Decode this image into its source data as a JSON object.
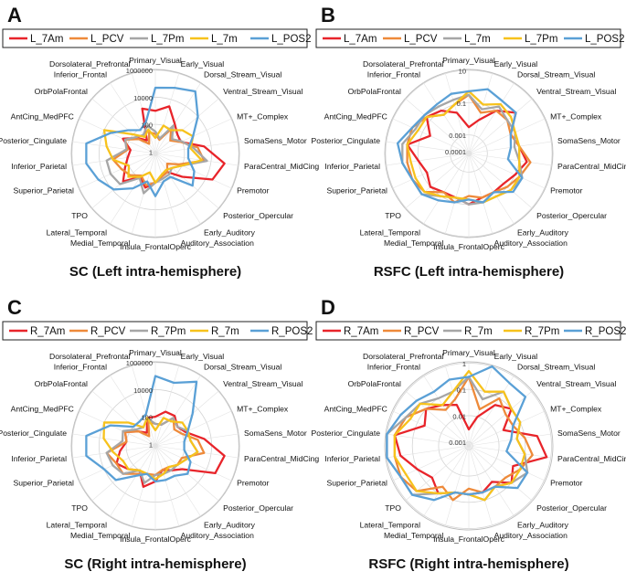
{
  "region_labels": [
    "Primary_Visual",
    "Early_Visual",
    "Dorsal_Stream_Visual",
    "Ventral_Stream_Visual",
    "MT+_Complex",
    "SomaSens_Motor",
    "ParaCentral_MidCing",
    "Premotor",
    "Posterior_Opercular",
    "Early_Auditory",
    "Auditory_Association",
    "Insula_FrontalOperc",
    "Medial_Temporal",
    "Lateral_Temporal",
    "TPO",
    "Superior_Parietal",
    "Inferior_Parietal",
    "Posterior_Cingulate",
    "AntCing_MedPFC",
    "OrbPolaFrontal",
    "Inferior_Frontal",
    "Dorsolateral_Prefrontal"
  ],
  "colors": {
    "red": "#e8242a",
    "orange": "#ee8a3a",
    "gray": "#a6a6a6",
    "yellow": "#f7c21c",
    "blue": "#5aa0d6"
  },
  "chart_data": [
    {
      "panel": "A",
      "type": "radar",
      "title": "SC (Left intra-hemisphere)",
      "radial_scale": "log",
      "tick_labels": [
        "1",
        "100",
        "10000",
        "1000000"
      ],
      "series_order": [
        "L_7Am",
        "L_PCV",
        "L_7Pm",
        "L_7m",
        "L_POS2"
      ],
      "series": [
        {
          "name": "L_7Am",
          "color": "red",
          "values": [
            1000,
            3000,
            300,
            100,
            80,
            3000,
            100000,
            30000,
            300,
            30,
            40,
            100,
            300,
            80,
            1000,
            200,
            80,
            50,
            300,
            40,
            10,
            2000
          ]
        },
        {
          "name": "L_PCV",
          "color": "orange",
          "values": [
            20,
            8,
            100,
            20,
            80,
            1000,
            3000,
            60,
            10,
            30,
            40,
            100,
            200,
            60,
            200,
            400,
            1000,
            80,
            200,
            30,
            5,
            30
          ]
        },
        {
          "name": "L_7Pm",
          "color": "gray",
          "values": [
            30,
            10,
            200,
            30,
            100,
            500,
            5000,
            100,
            30,
            50,
            60,
            100,
            800,
            100,
            2000,
            3000,
            3000,
            100,
            200,
            50,
            30,
            100
          ]
        },
        {
          "name": "L_7m",
          "color": "yellow",
          "values": [
            10,
            100,
            80,
            300,
            800,
            300,
            2000,
            100,
            30,
            20,
            30,
            100,
            20,
            80,
            300,
            100,
            1000,
            3000,
            10000,
            100,
            20,
            50
          ]
        },
        {
          "name": "L_POS2",
          "color": "blue",
          "values": [
            50000,
            80000,
            200000,
            10000,
            800,
            200,
            200,
            1000,
            3000,
            80,
            100,
            1000,
            100,
            800,
            8000,
            30000,
            100000,
            100000,
            3000,
            300,
            80,
            200
          ]
        }
      ]
    },
    {
      "panel": "B",
      "type": "radar",
      "title": "RSFC (Left intra-hemisphere)",
      "radial_scale": "log",
      "tick_labels": [
        "0.0001",
        "0.001",
        "0.1",
        "10"
      ],
      "series_order": [
        "L_7Am",
        "L_PCV",
        "L_7m",
        "L_7Pm",
        "L_POS2"
      ],
      "series": [
        {
          "name": "L_7Am",
          "color": "red",
          "values": [
            0.003,
            0.01,
            0.1,
            0.5,
            0.05,
            0.1,
            0.3,
            0.1,
            0.05,
            0.05,
            0.05,
            0.1,
            0.05,
            0.05,
            0.1,
            0.05,
            0.1,
            0.5,
            0.03,
            0.2,
            0.1,
            0.03
          ]
        },
        {
          "name": "L_PCV",
          "color": "orange",
          "values": [
            0.3,
            0.03,
            0.1,
            0.1,
            0.05,
            0.1,
            0.5,
            0.2,
            0.1,
            0.05,
            0.05,
            0.03,
            0.1,
            0.05,
            0.3,
            0.5,
            0.5,
            0.5,
            0.5,
            0.2,
            0.05,
            0.1
          ]
        },
        {
          "name": "L_7m",
          "color": "gray",
          "values": [
            0.3,
            0.05,
            0.2,
            0.1,
            0.1,
            0.05,
            0.1,
            0.3,
            0.2,
            0.1,
            0.1,
            0.1,
            0.05,
            0.1,
            0.5,
            0.5,
            1,
            1,
            0.3,
            0.3,
            0.2,
            0.2
          ]
        },
        {
          "name": "L_7Pm",
          "color": "yellow",
          "values": [
            0.5,
            0.1,
            0.3,
            0.2,
            0.1,
            0.1,
            0.1,
            0.2,
            0.2,
            0.1,
            0.1,
            0.05,
            0.05,
            0.1,
            0.3,
            0.3,
            0.3,
            0.5,
            0.2,
            0.2,
            0.05,
            0.1
          ]
        },
        {
          "name": "L_POS2",
          "color": "blue",
          "values": [
            0.5,
            1,
            0.5,
            0.5,
            0.05,
            0.03,
            0.02,
            0.3,
            0.3,
            0.05,
            0.1,
            0.05,
            0.1,
            0.2,
            0.5,
            0.5,
            1,
            2,
            0.5,
            0.3,
            0.3,
            0.5
          ]
        }
      ]
    },
    {
      "panel": "C",
      "type": "radar",
      "title": "SC (Right intra-hemisphere)",
      "radial_scale": "log",
      "tick_labels": [
        "1",
        "100",
        "10000",
        "1000000"
      ],
      "series_order": [
        "R_7Am",
        "R_PCV",
        "R_7Pm",
        "R_7m",
        "R_POS2"
      ],
      "series": [
        {
          "name": "R_7Am",
          "color": "red",
          "values": [
            100,
            300,
            300,
            100,
            200,
            3000,
            100000,
            50000,
            300,
            100,
            50,
            300,
            1000,
            100,
            300,
            1000,
            300,
            100,
            200,
            30,
            10,
            100
          ]
        },
        {
          "name": "R_PCV",
          "color": "orange",
          "values": [
            30,
            30,
            200,
            50,
            100,
            1000,
            3000,
            100,
            100,
            50,
            50,
            100,
            100,
            200,
            1000,
            1000,
            3000,
            100,
            200,
            30,
            5,
            50
          ]
        },
        {
          "name": "R_7Pm",
          "color": "gray",
          "values": [
            30,
            30,
            200,
            100,
            300,
            300,
            1000,
            200,
            100,
            100,
            100,
            100,
            500,
            100,
            1000,
            2000,
            3000,
            200,
            300,
            50,
            30,
            100
          ]
        },
        {
          "name": "R_7m",
          "color": "yellow",
          "values": [
            10,
            100,
            100,
            300,
            300,
            300,
            1000,
            200,
            100,
            50,
            100,
            200,
            100,
            100,
            300,
            300,
            1000,
            5000,
            10000,
            300,
            30,
            100
          ]
        },
        {
          "name": "R_POS2",
          "color": "blue",
          "values": [
            100000,
            50000,
            300000,
            3000,
            300,
            100,
            100,
            500,
            1000,
            300,
            300,
            300,
            100,
            300,
            5000,
            10000,
            100000,
            100000,
            3000,
            100,
            100,
            200
          ]
        }
      ]
    },
    {
      "panel": "D",
      "type": "radar",
      "title": "RSFC (Right intra-hemisphere)",
      "radial_scale": "log",
      "tick_labels": [
        "0.001",
        "0.01",
        "0.1",
        "1"
      ],
      "series_order": [
        "R_7Am",
        "R_PCV",
        "R_7m",
        "R_7Pm",
        "R_POS2"
      ],
      "series": [
        {
          "name": "R_7Am",
          "color": "red",
          "values": [
            0.003,
            0.01,
            0.05,
            0.1,
            0.02,
            0.3,
            0.7,
            0.05,
            0.1,
            0.03,
            0.05,
            0.05,
            0.05,
            0.1,
            0.05,
            0.1,
            0.3,
            0.5,
            0.05,
            0.1,
            0.05,
            0.03
          ]
        },
        {
          "name": "R_PCV",
          "color": "orange",
          "values": [
            0.3,
            0.02,
            0.1,
            0.05,
            0.05,
            0.1,
            0.2,
            0.1,
            0.05,
            0.05,
            0.05,
            0.03,
            0.1,
            0.05,
            0.3,
            0.5,
            0.5,
            0.5,
            0.3,
            0.1,
            0.03,
            0.05
          ]
        },
        {
          "name": "R_7m",
          "color": "gray",
          "values": [
            0.3,
            0.05,
            0.2,
            0.1,
            0.1,
            0.05,
            0.1,
            0.2,
            0.1,
            0.05,
            0.1,
            0.05,
            0.05,
            0.1,
            0.5,
            0.5,
            1,
            1,
            0.3,
            0.2,
            0.1,
            0.1
          ]
        },
        {
          "name": "R_7Pm",
          "color": "yellow",
          "values": [
            0.5,
            0.1,
            0.2,
            0.1,
            0.1,
            0.05,
            0.1,
            0.1,
            0.1,
            0.05,
            0.1,
            0.05,
            0.05,
            0.1,
            0.3,
            0.3,
            0.5,
            0.5,
            0.2,
            0.2,
            0.05,
            0.1
          ]
        },
        {
          "name": "R_POS2",
          "color": "blue",
          "values": [
            0.3,
            1,
            0.5,
            0.5,
            0.05,
            0.03,
            0.02,
            0.2,
            0.2,
            0.05,
            0.05,
            0.05,
            0.05,
            0.2,
            0.5,
            0.5,
            1,
            1,
            0.5,
            0.3,
            0.2,
            0.3
          ]
        }
      ]
    }
  ]
}
